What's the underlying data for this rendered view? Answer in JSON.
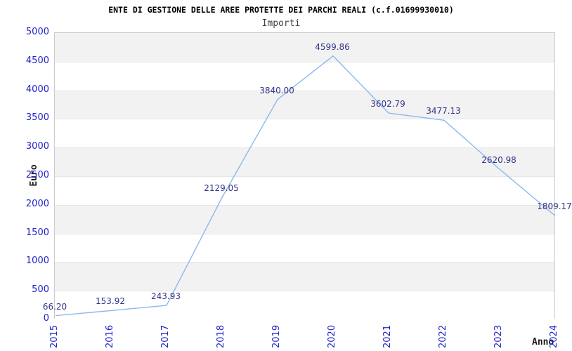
{
  "header": {
    "title": "ENTE DI GESTIONE DELLE AREE PROTETTE DEI PARCHI REALI (c.f.01699930010)",
    "subtitle": "Importi"
  },
  "chart_data": {
    "type": "line",
    "title": "ENTE DI GESTIONE DELLE AREE PROTETTE DEI PARCHI REALI (c.f.01699930010)",
    "subtitle": "Importi",
    "xlabel": "Anno",
    "ylabel": "Euro",
    "categories": [
      "2015",
      "2016",
      "2017",
      "2018",
      "2019",
      "2020",
      "2021",
      "2022",
      "2023",
      "2024"
    ],
    "values": [
      66.2,
      153.92,
      243.93,
      2129.05,
      3840.0,
      4599.86,
      3602.79,
      3477.13,
      2620.98,
      1809.17
    ],
    "point_labels": [
      "66.20",
      "153.92",
      "243.93",
      "2129.05",
      "3840.00",
      "4599.86",
      "3602.79",
      "3477.13",
      "2620.98",
      "1809.17"
    ],
    "ylim": [
      0,
      5000
    ],
    "ytick_step": 500,
    "grid": true,
    "legend_position": "none",
    "colors": {
      "line": "#8cb8ec",
      "tick_labels": "#2222cc",
      "point_labels": "#333388",
      "band": "#f2f2f2",
      "gridline": "#e7e7e7",
      "plot_border": "#cccccc",
      "title": "#000000",
      "subtitle": "#404040",
      "axis_titles": "#1a1a1a"
    }
  }
}
